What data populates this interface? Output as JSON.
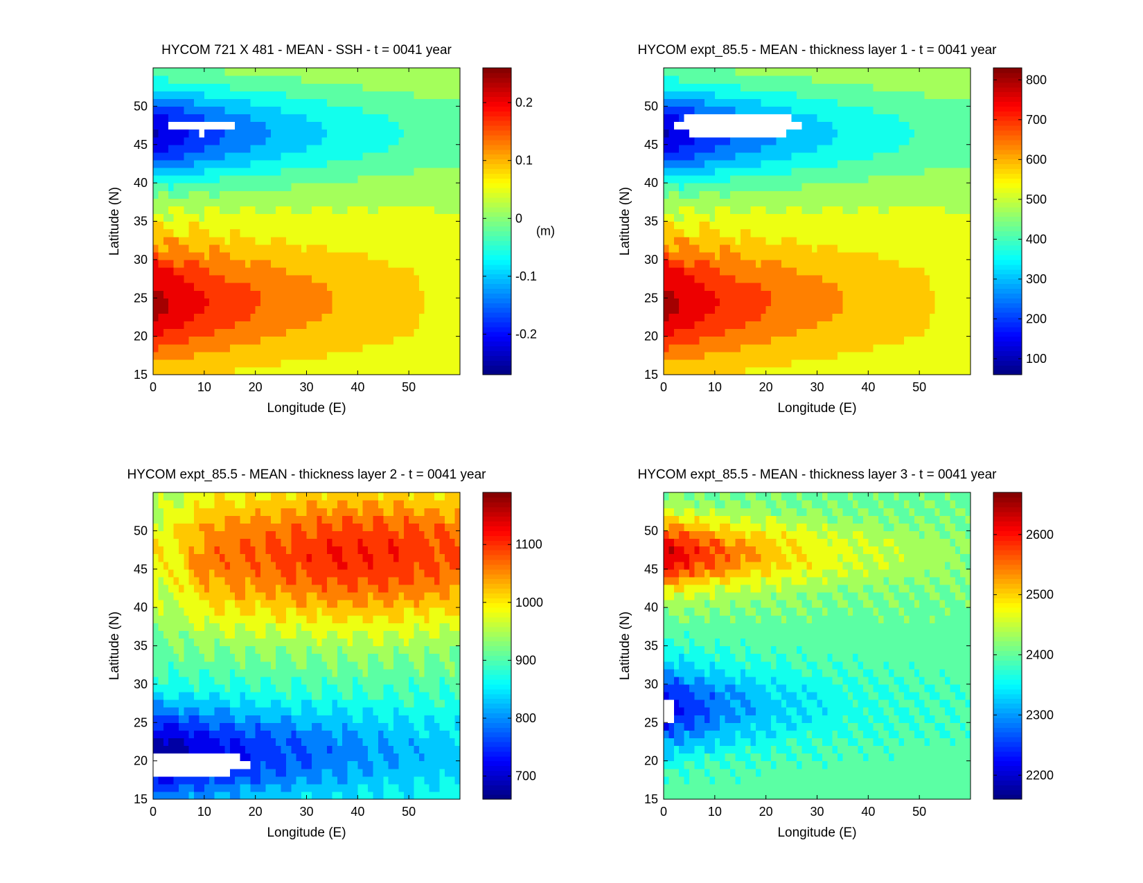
{
  "figure": {
    "background": "#ffffff",
    "colormap": "jet"
  },
  "chart_data": [
    {
      "type": "heatmap",
      "title": "HYCOM 721 X 481 - MEAN - SSH - t = 0041 year",
      "xlabel": "Longitude (E)",
      "ylabel": "Latitude (N)",
      "xlim": [
        0,
        60
      ],
      "ylim": [
        15,
        55
      ],
      "xticks": [
        "0",
        "10",
        "20",
        "30",
        "40",
        "50"
      ],
      "yticks": [
        "15",
        "20",
        "25",
        "30",
        "35",
        "40",
        "45",
        "50"
      ],
      "colorbar": {
        "min": -0.27,
        "max": 0.26,
        "ticks": [
          "-0.2",
          "-0.1",
          "0",
          "0.1",
          "0.2"
        ],
        "tick_values": [
          -0.2,
          -0.1,
          0,
          0.1,
          0.2
        ],
        "unit_label": "(m)"
      },
      "pattern": "ssh",
      "land_mask": "north"
    },
    {
      "type": "heatmap",
      "title": "HYCOM expt_85.5 - MEAN - thickness layer 1 - t = 0041 year",
      "xlabel": "Longitude (E)",
      "ylabel": "Latitude (N)",
      "xlim": [
        0,
        60
      ],
      "ylim": [
        15,
        55
      ],
      "xticks": [
        "0",
        "10",
        "20",
        "30",
        "40",
        "50"
      ],
      "yticks": [
        "15",
        "20",
        "25",
        "30",
        "35",
        "40",
        "45",
        "50"
      ],
      "colorbar": {
        "min": 60,
        "max": 830,
        "ticks": [
          "100",
          "200",
          "300",
          "400",
          "500",
          "600",
          "700",
          "800"
        ],
        "tick_values": [
          100,
          200,
          300,
          400,
          500,
          600,
          700,
          800
        ],
        "unit_label": ""
      },
      "pattern": "ssh",
      "land_mask": "north-wide"
    },
    {
      "type": "heatmap",
      "title": "HYCOM expt_85.5 - MEAN - thickness layer 2 - t = 0041 year",
      "xlabel": "Longitude (E)",
      "ylabel": "Latitude (N)",
      "xlim": [
        0,
        60
      ],
      "ylim": [
        15,
        55
      ],
      "xticks": [
        "0",
        "10",
        "20",
        "30",
        "40",
        "50"
      ],
      "yticks": [
        "15",
        "20",
        "25",
        "30",
        "35",
        "40",
        "45",
        "50"
      ],
      "colorbar": {
        "min": 660,
        "max": 1190,
        "ticks": [
          "700",
          "800",
          "900",
          "1000",
          "1100"
        ],
        "tick_values": [
          700,
          800,
          900,
          1000,
          1100
        ],
        "unit_label": ""
      },
      "pattern": "layer2",
      "land_mask": "south"
    },
    {
      "type": "heatmap",
      "title": "HYCOM expt_85.5 - MEAN - thickness layer 3 - t = 0041 year",
      "xlabel": "Longitude (E)",
      "ylabel": "Latitude (N)",
      "xlim": [
        0,
        60
      ],
      "ylim": [
        15,
        55
      ],
      "xticks": [
        "0",
        "10",
        "20",
        "30",
        "40",
        "50"
      ],
      "yticks": [
        "15",
        "20",
        "25",
        "30",
        "35",
        "40",
        "45",
        "50"
      ],
      "colorbar": {
        "min": 2160,
        "max": 2670,
        "ticks": [
          "2200",
          "2300",
          "2400",
          "2500",
          "2600"
        ],
        "tick_values": [
          2200,
          2300,
          2400,
          2500,
          2600
        ],
        "unit_label": ""
      },
      "pattern": "layer3",
      "land_mask": "west"
    }
  ]
}
